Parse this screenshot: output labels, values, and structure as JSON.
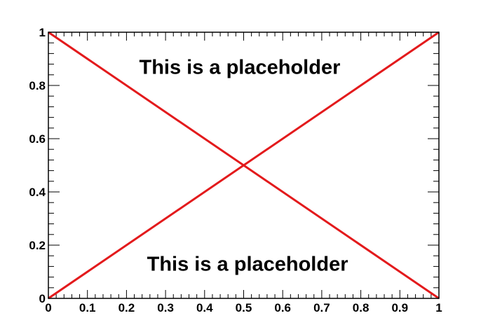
{
  "chart_data": {
    "type": "line",
    "title": "",
    "xlabel": "",
    "ylabel": "",
    "xlim": [
      0,
      1
    ],
    "ylim": [
      0,
      1
    ],
    "grid": false,
    "x_ticks": [
      0,
      0.1,
      0.2,
      0.3,
      0.4,
      0.5,
      0.6,
      0.7,
      0.8,
      0.9,
      1
    ],
    "x_tick_labels": [
      "0",
      "0.1",
      "0.2",
      "0.3",
      "0.4",
      "0.5",
      "0.6",
      "0.7",
      "0.8",
      "0.9",
      "1"
    ],
    "y_ticks": [
      0,
      0.2,
      0.4,
      0.6,
      0.8,
      1
    ],
    "y_tick_labels": [
      "0",
      "0.2",
      "0.4",
      "0.6",
      "0.8",
      "1"
    ],
    "series": [
      {
        "x": [
          0,
          1
        ],
        "y": [
          1,
          0
        ],
        "color": "#e31a1c"
      },
      {
        "x": [
          0,
          1
        ],
        "y": [
          0,
          1
        ],
        "color": "#e31a1c"
      }
    ],
    "annotations": [
      {
        "text": "This is a placeholder",
        "x": 0.49,
        "y": 0.87
      },
      {
        "text": "This is a placeholder",
        "x": 0.51,
        "y": 0.13
      }
    ]
  },
  "colors": {
    "line": "#e31a1c",
    "axis": "#000000",
    "background": "#ffffff"
  }
}
